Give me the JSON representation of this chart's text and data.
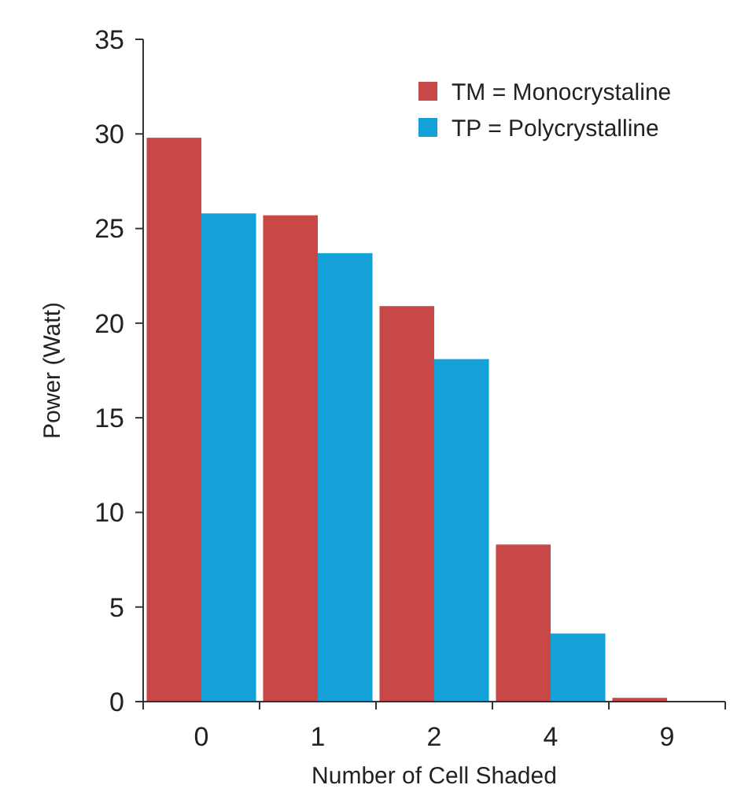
{
  "chart_data": {
    "type": "bar",
    "xlabel": "Number of Cell Shaded",
    "ylabel": "Power (Watt)",
    "categories": [
      "0",
      "1",
      "2",
      "4",
      "9"
    ],
    "series": [
      {
        "name": "TM = Monocrystaline",
        "color": "#c84848",
        "values": [
          29.8,
          25.7,
          20.9,
          8.3,
          0.2
        ]
      },
      {
        "name": "TP = Polycrystalline",
        "color": "#13a1d8",
        "values": [
          25.8,
          23.7,
          18.1,
          3.6,
          0
        ]
      }
    ],
    "ylim": [
      0,
      35
    ],
    "yticks": [
      0,
      5,
      10,
      15,
      20,
      25,
      30,
      35
    ],
    "grid": false,
    "legend": "top right"
  }
}
